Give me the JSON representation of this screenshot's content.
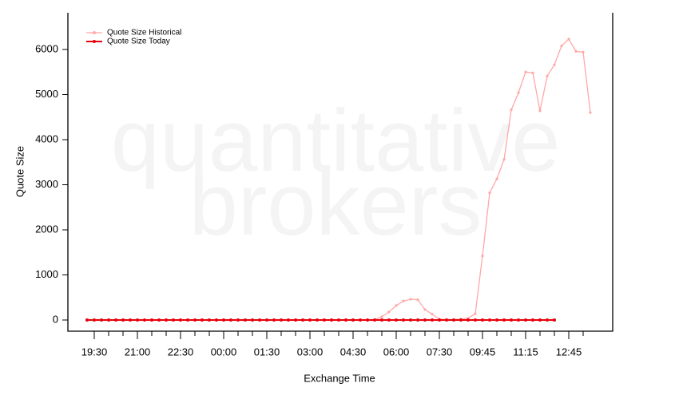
{
  "chart_data": {
    "type": "line",
    "watermark": [
      "quantitative",
      "brokers"
    ],
    "xlabel": "Exchange Time",
    "ylabel": "Quote Size",
    "categories": [
      null,
      "19:30",
      null,
      null,
      null,
      null,
      null,
      "21:00",
      null,
      null,
      null,
      null,
      null,
      "22:30",
      null,
      null,
      null,
      null,
      null,
      "00:00",
      null,
      null,
      null,
      null,
      null,
      "01:30",
      null,
      null,
      null,
      null,
      null,
      "03:00",
      null,
      null,
      null,
      null,
      null,
      "04:30",
      null,
      null,
      null,
      null,
      null,
      "06:00",
      null,
      null,
      null,
      null,
      null,
      "07:30",
      null,
      null,
      null,
      null,
      null,
      "09:45",
      null,
      null,
      null,
      null,
      null,
      "11:15",
      null,
      null,
      null,
      null,
      null,
      "12:45",
      null,
      null,
      null
    ],
    "series": [
      {
        "name": "Quote Size Historical",
        "color": "#ffa8a8",
        "values": [
          0,
          0,
          0,
          0,
          0,
          0,
          0,
          0,
          0,
          0,
          0,
          0,
          0,
          0,
          0,
          0,
          0,
          0,
          0,
          0,
          0,
          0,
          0,
          0,
          0,
          0,
          0,
          0,
          0,
          0,
          0,
          0,
          0,
          0,
          0,
          0,
          0,
          0,
          0,
          0,
          10,
          70,
          180,
          320,
          420,
          460,
          450,
          230,
          130,
          20,
          10,
          10,
          20,
          40,
          140,
          1420,
          2820,
          3130,
          3560,
          4660,
          5040,
          5500,
          5480,
          4640,
          5410,
          5660,
          6080,
          6230,
          5960,
          5940,
          4600
        ]
      },
      {
        "name": "Quote Size Today",
        "color": "#e8000b",
        "values": [
          0,
          0,
          0,
          0,
          0,
          0,
          0,
          0,
          0,
          0,
          0,
          0,
          0,
          0,
          0,
          0,
          0,
          0,
          0,
          0,
          0,
          0,
          0,
          0,
          0,
          0,
          0,
          0,
          0,
          0,
          0,
          0,
          0,
          0,
          0,
          0,
          0,
          0,
          0,
          0,
          0,
          0,
          0,
          0,
          0,
          0,
          0,
          0,
          0,
          0,
          0,
          0,
          0,
          0,
          0,
          0,
          0,
          0,
          0,
          0,
          0,
          0,
          0,
          0,
          0,
          0,
          null,
          null,
          null,
          null,
          null
        ]
      }
    ],
    "ylim": [
      -248,
      6814
    ],
    "yticks": [
      0,
      1000,
      2000,
      3000,
      4000,
      5000,
      6000
    ],
    "legend": "top-left"
  }
}
